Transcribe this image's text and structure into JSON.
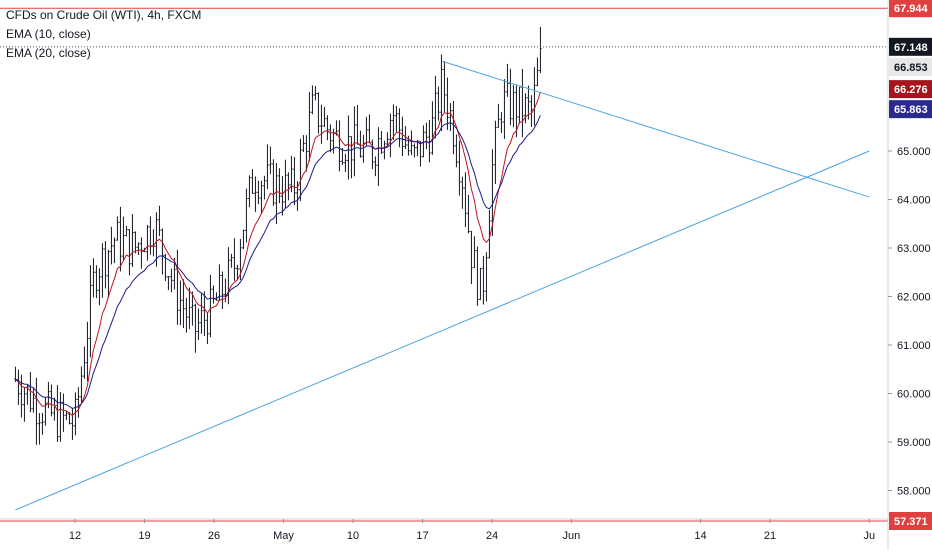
{
  "legend": {
    "title": "CFDs on Crude Oil (WTI), 4h, FXCM",
    "ema1": "EMA (10, close)",
    "ema2": "EMA (20, close)"
  },
  "colors": {
    "candle": "#131722",
    "ema10": "#c0121f",
    "ema20": "#1c1c8f",
    "trendline": "#4aa3df",
    "hline": "#e04040",
    "badge_red": "#e04040",
    "badge_ema10": "#a8141e",
    "badge_ema20": "#2a2a8c",
    "badge_last": "#131722",
    "badge_grey": "#e8e8ea"
  },
  "chart_data": {
    "type": "candlestick",
    "x_ticks": [
      "12",
      "19",
      "26",
      "May",
      "10",
      "17",
      "24",
      "Jun",
      "14",
      "21",
      "Ju"
    ],
    "y_ticks": [
      "58.000",
      "59.000",
      "60.000",
      "61.000",
      "62.000",
      "63.000",
      "64.000",
      "65.000"
    ],
    "ylim": [
      57.3,
      68.2
    ],
    "price_labels": {
      "high_line": "67.944",
      "last": "67.148",
      "prev": "66.853",
      "ema10": "66.276",
      "ema20": "65.863",
      "low_line": "57.371"
    },
    "horizontal_lines": [
      67.944,
      57.371
    ],
    "trendlines": [
      {
        "from": [
          "Apr 6",
          57.6
        ],
        "to": [
          "Jul 1",
          65.0
        ]
      },
      {
        "from": [
          "May 19",
          66.85
        ],
        "to": [
          "Jul 1",
          64.05
        ]
      }
    ],
    "path_anchors": [
      [
        "Apr 6",
        60.3
      ],
      [
        "Apr 8",
        59.8
      ],
      [
        "Apr 10",
        59.5
      ],
      [
        "Apr 12",
        59.4
      ],
      [
        "Apr 14",
        62.5
      ],
      [
        "Apr 16",
        63.2
      ],
      [
        "Apr 18",
        63.0
      ],
      [
        "Apr 20",
        63.5
      ],
      [
        "Apr 22",
        62.2
      ],
      [
        "Apr 24",
        61.3
      ],
      [
        "Apr 26",
        61.8
      ],
      [
        "Apr 28",
        62.6
      ],
      [
        "Apr 30",
        64.5
      ],
      [
        "May 2",
        64.3
      ],
      [
        "May 4",
        64.2
      ],
      [
        "May 6",
        65.9
      ],
      [
        "May 8",
        65.3
      ],
      [
        "May 10",
        65.1
      ],
      [
        "May 12",
        65.0
      ],
      [
        "May 14",
        65.8
      ],
      [
        "May 16",
        64.8
      ],
      [
        "May 18",
        65.5
      ],
      [
        "May 19",
        66.4
      ],
      [
        "May 20",
        65.6
      ],
      [
        "May 21",
        64.5
      ],
      [
        "May 22",
        62.8
      ],
      [
        "May 23",
        62.0
      ],
      [
        "May 24",
        64.6
      ],
      [
        "May 25",
        66.0
      ],
      [
        "May 27",
        65.9
      ],
      [
        "May 28",
        65.8
      ],
      [
        "May 29",
        67.0
      ]
    ]
  }
}
